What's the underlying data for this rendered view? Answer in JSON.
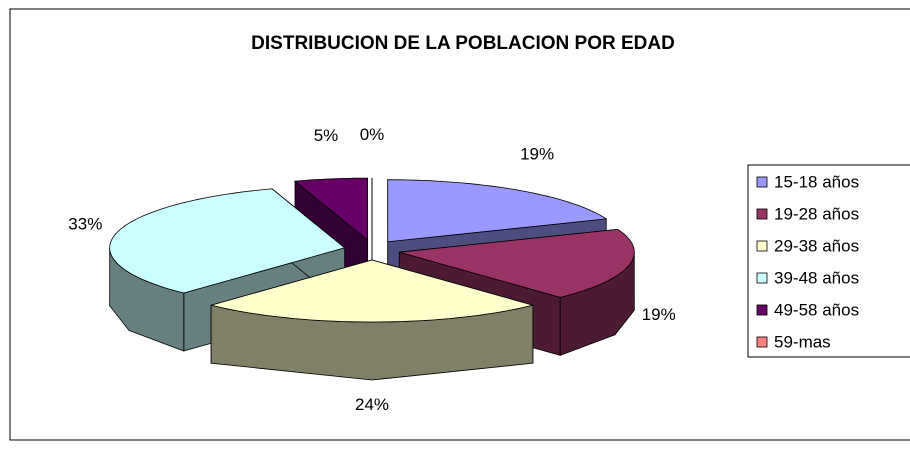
{
  "chart_data": {
    "type": "pie3d",
    "title": "DISTRIBUCION DE LA POBLACION POR EDAD",
    "categories": [
      "15-18 años",
      "19-28 años",
      "29-38 años",
      "39-48 años",
      "49-58 años",
      "59-mas"
    ],
    "values": [
      19,
      19,
      24,
      33,
      5,
      0
    ],
    "value_labels": [
      "19%",
      "19%",
      "24%",
      "33%",
      "5%",
      "0%"
    ],
    "colors": [
      "#9999ff",
      "#993366",
      "#ffffcc",
      "#ccffff",
      "#660066",
      "#ff8080"
    ],
    "legend": "right"
  }
}
